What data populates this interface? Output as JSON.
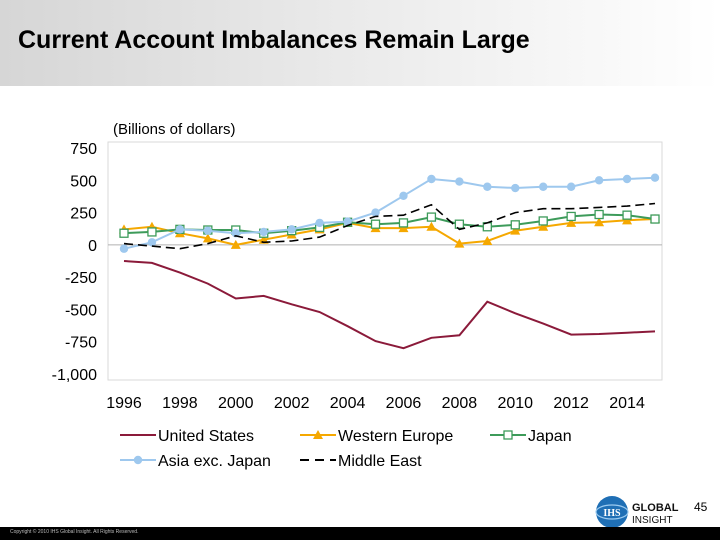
{
  "slide": {
    "title": "Current Account Imbalances Remain Large",
    "page_number": "45",
    "copyright": "Copyright © 2010 IHS Global Insight. All Rights Reserved."
  },
  "logo": {
    "mark": "IHS",
    "line1": "GLOBAL",
    "line2": "INSIGHT"
  },
  "chart_data": {
    "type": "line",
    "title": "",
    "subtitle": "(Billions of dollars)",
    "xlabel": "",
    "ylabel": "",
    "x": [
      1996,
      1997,
      1998,
      1999,
      2000,
      2001,
      2002,
      2003,
      2004,
      2005,
      2006,
      2007,
      2008,
      2009,
      2010,
      2011,
      2012,
      2013,
      2014,
      2015
    ],
    "x_ticks": [
      "1996",
      "1998",
      "2000",
      "2002",
      "2004",
      "2006",
      "2008",
      "2010",
      "2012",
      "2014"
    ],
    "y_ticks": [
      "750",
      "500",
      "250",
      "0",
      "-250",
      "-500",
      "-750",
      "-1,000"
    ],
    "y_tick_values": [
      750,
      500,
      250,
      0,
      -250,
      -500,
      -750,
      -1000
    ],
    "ylim": [
      -1000,
      750
    ],
    "grid": false,
    "legend_position": "bottom",
    "series": [
      {
        "name": "United States",
        "color": "#8b1a3a",
        "style": "solid",
        "marker": "none",
        "values": [
          -125,
          -140,
          -215,
          -300,
          -415,
          -395,
          -460,
          -520,
          -630,
          -745,
          -800,
          -720,
          -700,
          -440,
          -530,
          -610,
          -695,
          -690,
          -680,
          -670
        ]
      },
      {
        "name": "Western Europe",
        "color": "#f5a800",
        "style": "solid",
        "marker": "triangle",
        "values": [
          120,
          140,
          90,
          50,
          0,
          40,
          80,
          120,
          170,
          130,
          130,
          140,
          10,
          30,
          110,
          140,
          170,
          175,
          190,
          200
        ]
      },
      {
        "name": "Japan",
        "color": "#3d9b5a",
        "style": "solid",
        "marker": "square-open",
        "values": [
          90,
          100,
          120,
          115,
          115,
          90,
          110,
          135,
          175,
          160,
          170,
          215,
          160,
          140,
          155,
          185,
          220,
          235,
          230,
          200
        ]
      },
      {
        "name": "Asia exc. Japan",
        "color": "#9ec8ee",
        "style": "solid",
        "marker": "circle",
        "values": [
          -30,
          20,
          120,
          110,
          90,
          100,
          120,
          170,
          180,
          250,
          380,
          510,
          490,
          450,
          440,
          450,
          450,
          500,
          510,
          520
        ]
      },
      {
        "name": "Middle East",
        "color": "#000000",
        "style": "dashed",
        "marker": "none",
        "values": [
          10,
          -10,
          -30,
          10,
          70,
          20,
          30,
          60,
          150,
          220,
          230,
          310,
          120,
          170,
          250,
          280,
          280,
          290,
          300,
          320
        ]
      }
    ]
  }
}
